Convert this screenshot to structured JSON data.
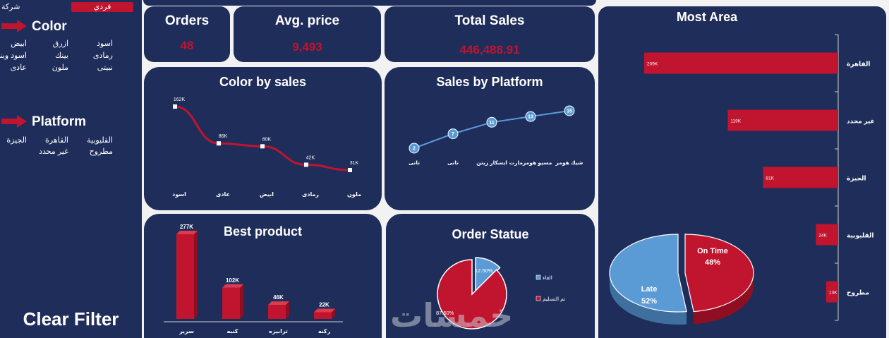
{
  "sidebar": {
    "type_options": [
      {
        "label": "فردي",
        "selected": true
      },
      {
        "label": "شركة",
        "selected": false
      }
    ],
    "color_title": "Color",
    "color_items": [
      [
        "اسود",
        "ازرق",
        "ابيض"
      ],
      [
        "رمادى",
        "بينك",
        "اسود وبنى"
      ],
      [
        "نبيتى",
        "ملون",
        "عادى"
      ]
    ],
    "platform_title": "Platform",
    "platform_items": [
      [
        "القليوبية",
        "القاهرة",
        "الجيزة"
      ],
      [
        "مطروح",
        "غير محدد"
      ]
    ],
    "clear_label": "Clear Filter",
    "accent": "#c0142f"
  },
  "kpis": {
    "orders": {
      "label": "Orders",
      "value": "48"
    },
    "avg_price": {
      "label": "Avg. price",
      "value": "9,493"
    },
    "total_sales": {
      "label": "Total Sales",
      "value": "446,488.91"
    }
  },
  "watermark": "خمسات",
  "chart_data": [
    {
      "id": "color-by-sales",
      "type": "line",
      "title": "Color by sales",
      "categories": [
        "اسود",
        "عادى",
        "ابيض",
        "رمادى",
        "ملون"
      ],
      "values": [
        162000,
        86000,
        80000,
        42000,
        31000
      ],
      "data_labels": [
        "162K",
        "86K",
        "80K",
        "42K",
        "31K"
      ],
      "ylim": [
        0,
        170000
      ],
      "color": "#c0142f",
      "grid": false
    },
    {
      "id": "sales-by-platform",
      "type": "line",
      "title": "Sales by Platform",
      "categories": [
        "تاتى",
        "تاتى",
        "ايسكار زيتن",
        "مسيو هومزمارت",
        "شيك هومز"
      ],
      "values": [
        2,
        7,
        11,
        13,
        15
      ],
      "data_labels": [
        "2",
        "7",
        "11",
        "13",
        "15"
      ],
      "ylim": [
        0,
        16
      ],
      "color": "#5b9bd5",
      "grid": false
    },
    {
      "id": "best-product",
      "type": "bar",
      "title": "Best product",
      "categories": [
        "سرير",
        "كنبه",
        "ترابيزه",
        "ركنه"
      ],
      "values": [
        277000,
        102000,
        46000,
        22000
      ],
      "data_labels": [
        "277K",
        "102K",
        "46K",
        "22K"
      ],
      "ylim": [
        0,
        280000
      ],
      "color": "#c0142f",
      "grid": false
    },
    {
      "id": "order-statue",
      "type": "pie",
      "title": "Order Statue",
      "labels": [
        "الغاء",
        "تم التسليم"
      ],
      "values": [
        12.5,
        87.5
      ],
      "data_labels": [
        "12.50%",
        "87.50%"
      ],
      "colors": [
        "#5b9bd5",
        "#c0142f"
      ],
      "legend": "right"
    },
    {
      "id": "most-area",
      "type": "bar",
      "orientation": "horizontal",
      "title": "Most Area",
      "categories": [
        "القاهرة",
        "غير محدد",
        "الجيزة",
        "القليوبية",
        "مطروح"
      ],
      "values": [
        209000,
        119000,
        81000,
        24000,
        13000
      ],
      "data_labels": [
        "209K",
        "119K",
        "81K",
        "24K",
        "13K"
      ],
      "xlim": [
        0,
        215000
      ],
      "color": "#c0142f",
      "grid": false
    },
    {
      "id": "on-time-pie",
      "type": "pie",
      "title": "",
      "labels": [
        "On Time",
        "Late"
      ],
      "values": [
        48,
        52
      ],
      "data_labels": [
        "48%",
        "52%"
      ],
      "colors": [
        "#c0142f",
        "#5b9bd5"
      ]
    }
  ]
}
